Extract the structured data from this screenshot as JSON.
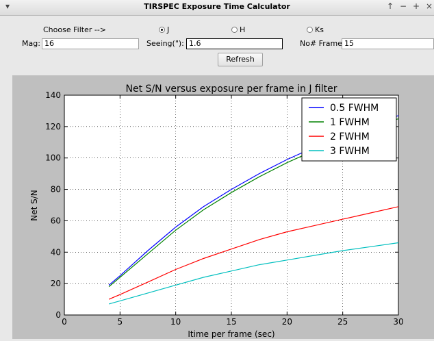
{
  "window": {
    "title": "TIRSPEC Exposure Time Calculator",
    "buttons": [
      "▾",
      "↑",
      "−",
      "+",
      "×"
    ]
  },
  "form": {
    "choose_filter_label": "Choose Filter -->",
    "filters": [
      {
        "label": "J",
        "selected": true
      },
      {
        "label": "H",
        "selected": false
      },
      {
        "label": "Ks",
        "selected": false
      }
    ],
    "mag_label": "Mag:",
    "mag_value": "16",
    "seeing_label": "Seeing(\"):",
    "seeing_value": "1.6",
    "frames_label": "No# Frames:",
    "frames_value": "15",
    "refresh_label": "Refresh"
  },
  "chart_data": {
    "type": "line",
    "title": "Net S/N versus exposure per frame in J filter",
    "xlabel": "Itime per frame (sec)",
    "ylabel": "Net S/N",
    "xlim": [
      0,
      30
    ],
    "ylim": [
      0,
      140
    ],
    "xticks": [
      "0",
      "5",
      "10",
      "15",
      "20",
      "25",
      "30"
    ],
    "yticks": [
      "0",
      "20",
      "40",
      "60",
      "80",
      "100",
      "120",
      "140"
    ],
    "grid": true,
    "legend_position": "top-right",
    "x": [
      4,
      5,
      7.5,
      10,
      12.5,
      15,
      17.5,
      20,
      22.5,
      25,
      27.5,
      30
    ],
    "series": [
      {
        "name": "0.5 FWHM",
        "color": "#0000ff",
        "values": [
          19,
          25,
          41,
          56,
          69,
          80,
          90,
          99,
          107,
          114,
          121,
          127
        ]
      },
      {
        "name": "1 FWHM",
        "color": "#008000",
        "values": [
          18,
          24,
          39,
          54,
          67,
          78,
          88,
          97,
          105,
          112,
          119,
          125
        ]
      },
      {
        "name": "2 FWHM",
        "color": "#ff0000",
        "values": [
          10,
          13,
          21,
          29,
          36,
          42,
          48,
          53,
          57,
          61,
          65,
          69
        ]
      },
      {
        "name": "3 FWHM",
        "color": "#00bfbf",
        "values": [
          7,
          9,
          14,
          19,
          24,
          28,
          32,
          35,
          38,
          41,
          43.5,
          46
        ]
      }
    ]
  }
}
